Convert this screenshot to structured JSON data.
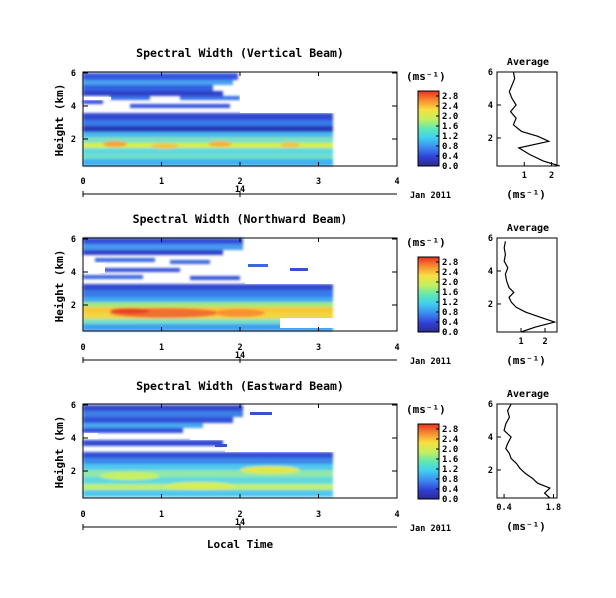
{
  "chart_data": [
    {
      "type": "heatmap",
      "title": "Spectral Width (Vertical Beam)",
      "xlabel": "",
      "ylabel": "Height (km)",
      "xlim": [
        0,
        4
      ],
      "ylim": [
        0.3,
        6
      ],
      "x_ticks": [
        "0",
        "1",
        "2",
        "3",
        "4"
      ],
      "y_ticks": [
        "2",
        "4",
        "6"
      ],
      "date_axis": {
        "tick": "14",
        "label": "Jan 2011"
      },
      "colorbar": {
        "unit": "(ms⁻¹)",
        "ticks": [
          "0.0",
          "0.4",
          "0.8",
          "1.2",
          "1.6",
          "2.0",
          "2.4",
          "2.8"
        ],
        "range": [
          0,
          3
        ]
      },
      "profile": {
        "title": "Average",
        "xlabel": "(ms⁻¹)",
        "x_ticks": [
          "1",
          "2"
        ],
        "y_ticks": [
          "2",
          "4",
          "6"
        ],
        "xlim": [
          0,
          2.2
        ],
        "ylim": [
          0.3,
          6
        ],
        "series": [
          {
            "height": [
              0.3,
              0.6,
              1.0,
              1.4,
              1.8,
              2.1,
              2.4,
              2.8,
              3.2,
              3.6,
              4.0,
              4.4,
              4.8,
              5.2,
              5.6,
              6.0
            ],
            "width": [
              2.3,
              1.7,
              1.2,
              0.8,
              1.9,
              1.5,
              0.9,
              0.6,
              0.7,
              0.5,
              0.7,
              0.55,
              0.45,
              0.55,
              0.65,
              0.6
            ]
          }
        ]
      }
    },
    {
      "type": "heatmap",
      "title": "Spectral Width (Northward Beam)",
      "xlabel": "",
      "ylabel": "Height (km)",
      "xlim": [
        0,
        4
      ],
      "ylim": [
        0.3,
        6
      ],
      "x_ticks": [
        "0",
        "1",
        "2",
        "3",
        "4"
      ],
      "y_ticks": [
        "2",
        "4",
        "6"
      ],
      "date_axis": {
        "tick": "14",
        "label": "Jan 2011"
      },
      "colorbar": {
        "unit": "(ms⁻¹)",
        "ticks": [
          "0.0",
          "0.4",
          "0.8",
          "1.2",
          "1.6",
          "2.0",
          "2.4",
          "2.8"
        ],
        "range": [
          0,
          3
        ]
      },
      "profile": {
        "title": "Average",
        "xlabel": "(ms⁻¹)",
        "x_ticks": [
          "1",
          "2"
        ],
        "y_ticks": [
          "2",
          "4",
          "6"
        ],
        "xlim": [
          0,
          2.5
        ],
        "ylim": [
          0.3,
          6
        ],
        "series": [
          {
            "height": [
              0.3,
              0.6,
              0.9,
              1.2,
              1.5,
              1.8,
              2.1,
              2.4,
              2.7,
              3.0,
              3.4,
              3.8,
              4.2,
              4.6,
              5.0,
              5.4,
              5.8
            ],
            "width": [
              1.0,
              1.6,
              2.4,
              1.8,
              1.2,
              0.8,
              0.6,
              0.5,
              0.7,
              0.5,
              0.4,
              0.35,
              0.45,
              0.3,
              0.35,
              0.3,
              0.35
            ]
          }
        ]
      }
    },
    {
      "type": "heatmap",
      "title": "Spectral Width (Eastward Beam)",
      "xlabel": "Local Time",
      "ylabel": "Height (km)",
      "xlim": [
        0,
        4
      ],
      "ylim": [
        0.3,
        6
      ],
      "x_ticks": [
        "0",
        "1",
        "2",
        "3",
        "4"
      ],
      "y_ticks": [
        "2",
        "4",
        "6"
      ],
      "date_axis": {
        "tick": "14",
        "label": "Jan 2011"
      },
      "colorbar": {
        "unit": "(ms⁻¹)",
        "ticks": [
          "0.0",
          "0.4",
          "0.8",
          "1.2",
          "1.6",
          "2.0",
          "2.4",
          "2.8"
        ],
        "range": [
          0,
          3
        ]
      },
      "profile": {
        "title": "Average",
        "xlabel": "(ms⁻¹)",
        "x_ticks": [
          "0.4",
          "1.8"
        ],
        "y_ticks": [
          "2",
          "4",
          "6"
        ],
        "xlim": [
          0.2,
          1.9
        ],
        "ylim": [
          0.3,
          6
        ],
        "series": [
          {
            "height": [
              0.3,
              0.6,
              0.9,
              1.2,
              1.5,
              1.8,
              2.1,
              2.4,
              2.7,
              3.0,
              3.3,
              3.6,
              4.0,
              4.4,
              4.8,
              5.2,
              5.6,
              6.0
            ],
            "width": [
              1.7,
              1.55,
              1.7,
              1.35,
              1.2,
              1.0,
              0.85,
              0.75,
              0.6,
              0.55,
              0.45,
              0.5,
              0.6,
              0.4,
              0.45,
              0.55,
              0.5,
              0.6
            ]
          }
        ]
      }
    }
  ]
}
